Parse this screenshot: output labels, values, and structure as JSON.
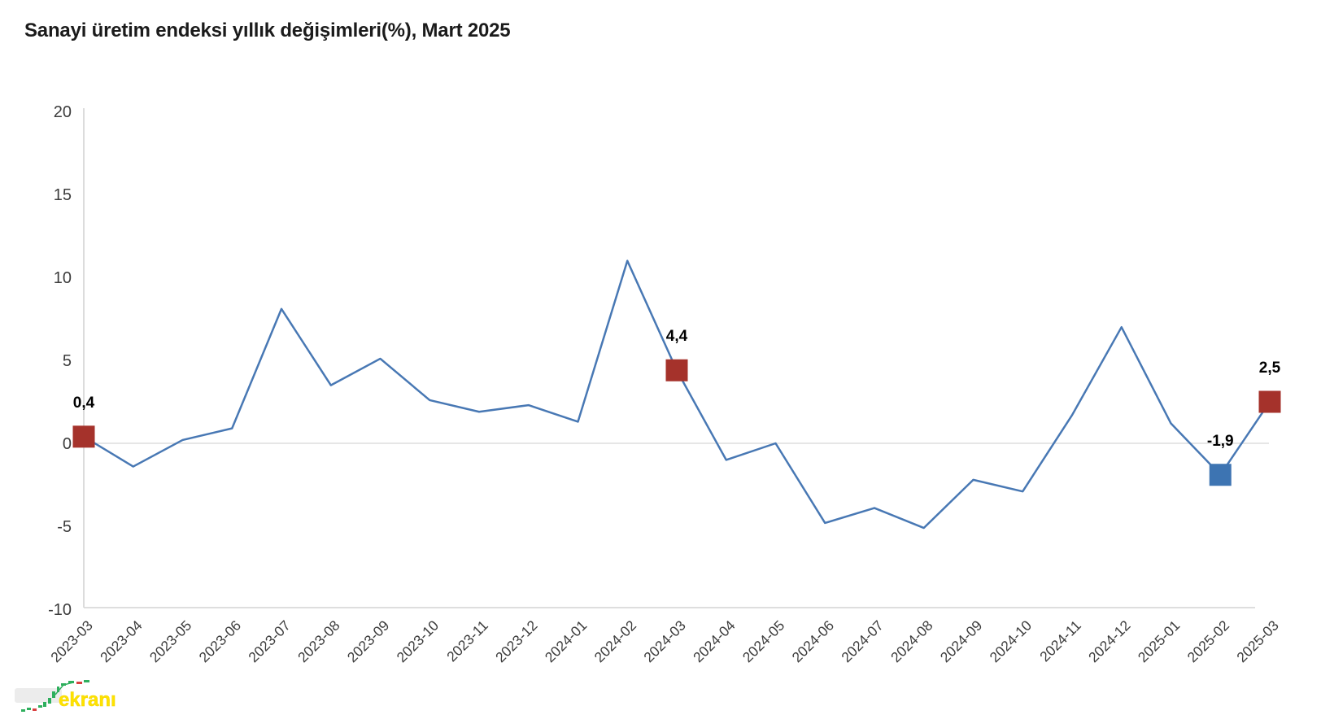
{
  "title": "Sanayi üretim endeksi yıllık değişimleri(%), Mart 2025",
  "watermark": {
    "text": "ekranı",
    "color": "#FFE200"
  },
  "chart_data": {
    "type": "line",
    "title": "Sanayi üretim endeksi yıllık değişimleri(%), Mart 2025",
    "xlabel": "",
    "ylabel": "",
    "ylim": [
      -10,
      20
    ],
    "yticks": [
      20,
      15,
      10,
      5,
      0,
      -5,
      -10
    ],
    "grid": "zero-line-only",
    "legend": "none",
    "categories": [
      "2023-03",
      "2023-04",
      "2023-05",
      "2023-06",
      "2023-07",
      "2023-08",
      "2023-09",
      "2023-10",
      "2023-11",
      "2023-12",
      "2024-01",
      "2024-02",
      "2024-03",
      "2024-04",
      "2024-05",
      "2024-06",
      "2024-07",
      "2024-08",
      "2024-09",
      "2024-10",
      "2024-11",
      "2024-12",
      "2025-01",
      "2025-02",
      "2025-03"
    ],
    "values": [
      0.4,
      -1.4,
      0.2,
      0.9,
      8.1,
      3.5,
      5.1,
      2.6,
      1.9,
      2.3,
      1.3,
      11,
      4.4,
      -1,
      0,
      -4.8,
      -3.9,
      -5.1,
      -2.2,
      -2.9,
      1.7,
      7,
      1.2,
      -1.9,
      2.5
    ],
    "highlights": [
      {
        "index": 0,
        "label": "0,4",
        "marker": "red"
      },
      {
        "index": 12,
        "label": "4,4",
        "marker": "red"
      },
      {
        "index": 23,
        "label": "-1,9",
        "marker": "blue"
      },
      {
        "index": 24,
        "label": "2,5",
        "marker": "red"
      }
    ],
    "colors": {
      "line": "#4878B4",
      "marker_red": "#A5322B",
      "marker_blue": "#3D74B2",
      "gridline": "#DEDEDE",
      "axis": "#D9D9D9",
      "tick_text": "#3C3C3C",
      "data_label": "#000000"
    }
  }
}
